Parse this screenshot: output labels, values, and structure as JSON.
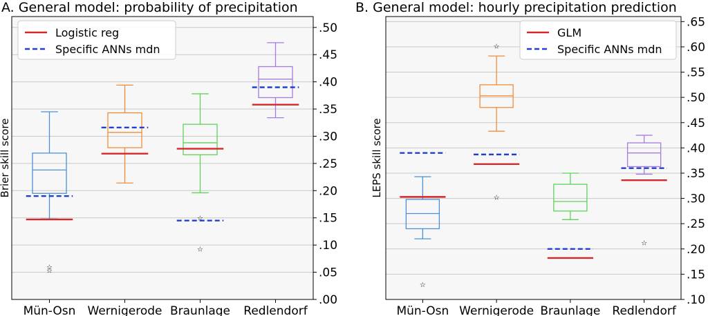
{
  "chart_data": [
    {
      "type": "box",
      "title": "A. General model: probability of precipitation",
      "ylabel": "Brier skill score",
      "ylim": [
        0.0,
        0.52
      ],
      "yticks": [
        ".00",
        ".05",
        ".10",
        ".15",
        ".20",
        ".25",
        ".30",
        ".35",
        ".40",
        ".45",
        ".50"
      ],
      "ytick_values": [
        0,
        0.05,
        0.1,
        0.15,
        0.2,
        0.25,
        0.3,
        0.35,
        0.4,
        0.45,
        0.5
      ],
      "grid": true,
      "legend_position": "top-left",
      "categories": [
        "Mün-Osn",
        "Wernigerode",
        "Braunlage",
        "Redlendorf"
      ],
      "box_colors": [
        "#4a90d9",
        "#f28c38",
        "#5fd15a",
        "#a57be0"
      ],
      "boxes": [
        {
          "category": "Mün-Osn",
          "whisker_low": 0.148,
          "q1": 0.195,
          "median": 0.238,
          "q3": 0.269,
          "whisker_high": 0.345,
          "outliers": [
            0.06,
            0.054
          ]
        },
        {
          "category": "Wernigerode",
          "whisker_low": 0.214,
          "q1": 0.279,
          "median": 0.307,
          "q3": 0.343,
          "whisker_high": 0.394,
          "outliers": []
        },
        {
          "category": "Braunlage",
          "whisker_low": 0.196,
          "q1": 0.266,
          "median": 0.288,
          "q3": 0.322,
          "whisker_high": 0.378,
          "outliers": [
            0.15,
            0.093
          ]
        },
        {
          "category": "Redlendorf",
          "whisker_low": 0.334,
          "q1": 0.371,
          "median": 0.405,
          "q3": 0.428,
          "whisker_high": 0.472,
          "outliers": []
        }
      ],
      "series": [
        {
          "name": "Logistic reg",
          "style": "solid",
          "color": "#d62728",
          "values": [
            0.147,
            0.268,
            0.277,
            0.358
          ]
        },
        {
          "name": "Specific ANNs mdn",
          "style": "dashed",
          "color": "#1f3fcf",
          "values": [
            0.19,
            0.316,
            0.145,
            0.39
          ]
        }
      ]
    },
    {
      "type": "box",
      "title": "B. General model: hourly precipitation prediction",
      "ylabel": "LEPS skill score",
      "ylim": [
        0.1,
        0.66
      ],
      "yticks": [
        ".10",
        ".15",
        ".20",
        ".25",
        ".30",
        ".35",
        ".40",
        ".45",
        ".50",
        ".55",
        ".60",
        ".65"
      ],
      "ytick_values": [
        0.1,
        0.15,
        0.2,
        0.25,
        0.3,
        0.35,
        0.4,
        0.45,
        0.5,
        0.55,
        0.6,
        0.65
      ],
      "grid": true,
      "legend_position": "top-right",
      "categories": [
        "Mün-Osn",
        "Wernigerode",
        "Braunlage",
        "Redlendorf"
      ],
      "box_colors": [
        "#4a90d9",
        "#f28c38",
        "#5fd15a",
        "#a57be0"
      ],
      "boxes": [
        {
          "category": "Mün-Osn",
          "whisker_low": 0.22,
          "q1": 0.24,
          "median": 0.27,
          "q3": 0.298,
          "whisker_high": 0.343,
          "outliers": [
            0.13
          ]
        },
        {
          "category": "Wernigerode",
          "whisker_low": 0.433,
          "q1": 0.48,
          "median": 0.503,
          "q3": 0.525,
          "whisker_high": 0.582,
          "outliers": [
            0.602,
            0.303
          ]
        },
        {
          "category": "Braunlage",
          "whisker_low": 0.258,
          "q1": 0.275,
          "median": 0.294,
          "q3": 0.328,
          "whisker_high": 0.35,
          "outliers": []
        },
        {
          "category": "Redlendorf",
          "whisker_low": 0.348,
          "q1": 0.363,
          "median": 0.39,
          "q3": 0.41,
          "whisker_high": 0.425,
          "outliers": [
            0.213
          ]
        }
      ],
      "series": [
        {
          "name": "GLM",
          "style": "solid",
          "color": "#d62728",
          "values": [
            0.303,
            0.368,
            0.182,
            0.336
          ]
        },
        {
          "name": "Specific ANNs mdn",
          "style": "dashed",
          "color": "#1f3fcf",
          "values": [
            0.39,
            0.387,
            0.2,
            0.36
          ]
        }
      ]
    }
  ]
}
